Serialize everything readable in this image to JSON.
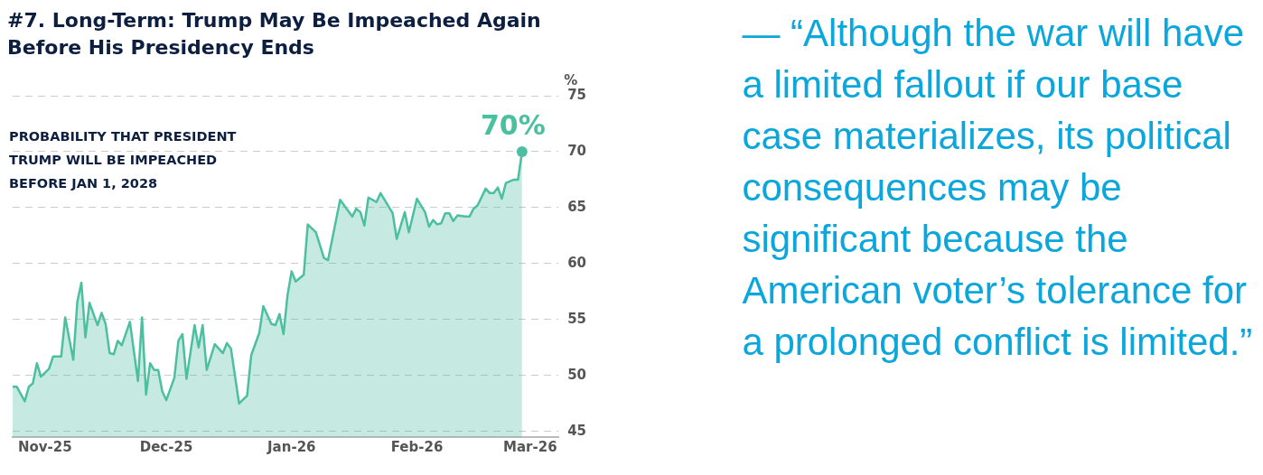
{
  "chart_data": {
    "type": "area",
    "title": "#7. Long-Term: Trump May Be Impeached Again Before His Presidency Ends",
    "subtitle": "PROBABILITY THAT PRESIDENT TRUMP WILL BE IMPEACHED BEFORE JAN 1, 2028",
    "ylabel": "%",
    "annotations": [
      "— “Although the war will have a limited fallout if our base case materializes, its political consequences may be significant because the American voter’s tolerance for a prolonged conflict is limited.”"
    ],
    "x": [
      "2025-10-24",
      "2025-10-25",
      "2025-10-27",
      "2025-10-28",
      "2025-10-29",
      "2025-10-30",
      "2025-10-31",
      "2025-11-02",
      "2025-11-03",
      "2025-11-05",
      "2025-11-06",
      "2025-11-08",
      "2025-11-09",
      "2025-11-10",
      "2025-11-11",
      "2025-11-12",
      "2025-11-14",
      "2025-11-15",
      "2025-11-16",
      "2025-11-17",
      "2025-11-18",
      "2025-11-19",
      "2025-11-20",
      "2025-11-22",
      "2025-11-24",
      "2025-11-25",
      "2025-11-26",
      "2025-11-27",
      "2025-11-28",
      "2025-11-29",
      "2025-11-30",
      "2025-12-01",
      "2025-12-03",
      "2025-12-04",
      "2025-12-05",
      "2025-12-06",
      "2025-12-08",
      "2025-12-09",
      "2025-12-10",
      "2025-12-11",
      "2025-12-13",
      "2025-12-15",
      "2025-12-16",
      "2025-12-17",
      "2025-12-19",
      "2025-12-21",
      "2025-12-22",
      "2025-12-24",
      "2025-12-25",
      "2025-12-27",
      "2025-12-28",
      "2025-12-29",
      "2025-12-30",
      "2025-12-31",
      "2026-01-01",
      "2026-01-02",
      "2026-01-04",
      "2026-01-05",
      "2026-01-07",
      "2026-01-09",
      "2026-01-10",
      "2026-01-13",
      "2026-01-16",
      "2026-01-17",
      "2026-01-18",
      "2026-01-19",
      "2026-01-20",
      "2026-01-22",
      "2026-01-23",
      "2026-01-26",
      "2026-01-27",
      "2026-01-29",
      "2026-01-30",
      "2026-02-01",
      "2026-02-03",
      "2026-02-04",
      "2026-02-05",
      "2026-02-06",
      "2026-02-07",
      "2026-02-08",
      "2026-02-09",
      "2026-02-10",
      "2026-02-11",
      "2026-02-13",
      "2026-02-14",
      "2026-02-15",
      "2026-02-16",
      "2026-02-18",
      "2026-02-19",
      "2026-02-20",
      "2026-02-21",
      "2026-02-22",
      "2026-02-23",
      "2026-02-25",
      "2026-02-26",
      "2026-02-27"
    ],
    "series": [
      {
        "color": "#4dbfa1",
        "values": [
          49.0,
          49.0,
          47.7,
          49.0,
          49.3,
          51.1,
          49.9,
          50.6,
          51.7,
          51.7,
          55.2,
          51.4,
          56.6,
          58.3,
          53.4,
          56.5,
          54.5,
          55.6,
          54.6,
          52.0,
          51.9,
          53.1,
          52.7,
          54.8,
          49.5,
          55.2,
          48.3,
          51.1,
          50.5,
          50.5,
          48.6,
          47.8,
          49.8,
          53.1,
          53.7,
          49.7,
          54.5,
          52.5,
          54.5,
          50.5,
          52.8,
          52.0,
          52.9,
          52.4,
          47.5,
          48.2,
          51.8,
          53.8,
          56.2,
          54.6,
          54.5,
          55.5,
          53.7,
          57.2,
          59.3,
          58.4,
          59.0,
          63.5,
          62.8,
          60.5,
          60.3,
          65.7,
          64.2,
          64.9,
          64.6,
          63.4,
          65.9,
          65.5,
          66.3,
          64.5,
          62.2,
          64.6,
          62.8,
          65.8,
          64.6,
          63.3,
          63.9,
          63.5,
          63.6,
          64.5,
          64.5,
          63.8,
          64.3,
          64.2,
          64.2,
          64.9,
          65.2,
          66.7,
          66.3,
          66.3,
          66.8,
          65.8,
          67.2,
          67.5,
          67.5,
          70
        ],
        "value_labels": [
          null,
          null,
          null,
          null,
          null,
          null,
          null,
          null,
          null,
          null,
          null,
          null,
          null,
          null,
          null,
          null,
          null,
          null,
          null,
          null,
          null,
          null,
          null,
          null,
          null,
          null,
          null,
          null,
          null,
          null,
          null,
          null,
          null,
          null,
          null,
          null,
          null,
          null,
          null,
          null,
          null,
          null,
          null,
          null,
          null,
          null,
          null,
          null,
          null,
          null,
          null,
          null,
          null,
          null,
          null,
          null,
          null,
          null,
          null,
          null,
          null,
          null,
          null,
          null,
          null,
          null,
          null,
          null,
          null,
          null,
          null,
          null,
          null,
          null,
          null,
          null,
          null,
          null,
          null,
          null,
          null,
          null,
          null,
          null,
          null,
          null,
          null,
          null,
          null,
          null,
          null,
          null,
          null,
          null,
          null,
          "70%"
        ]
      }
    ],
    "xlim": [
      "2025-10-24",
      "2026-03-08"
    ],
    "xticks": [
      {
        "value": "2025-11-01",
        "label": "Nov-25"
      },
      {
        "value": "2025-12-01",
        "label": "Dec-25"
      },
      {
        "value": "2026-01-01",
        "label": "Jan-26"
      },
      {
        "value": "2026-02-01",
        "label": "Feb-26"
      },
      {
        "value": "2026-03-01",
        "label": "Mar-26"
      }
    ],
    "ylim": [
      44.5,
      75
    ],
    "yticks": [
      45,
      50,
      55,
      60,
      65,
      70,
      75
    ],
    "grid": "y",
    "legend": false
  }
}
